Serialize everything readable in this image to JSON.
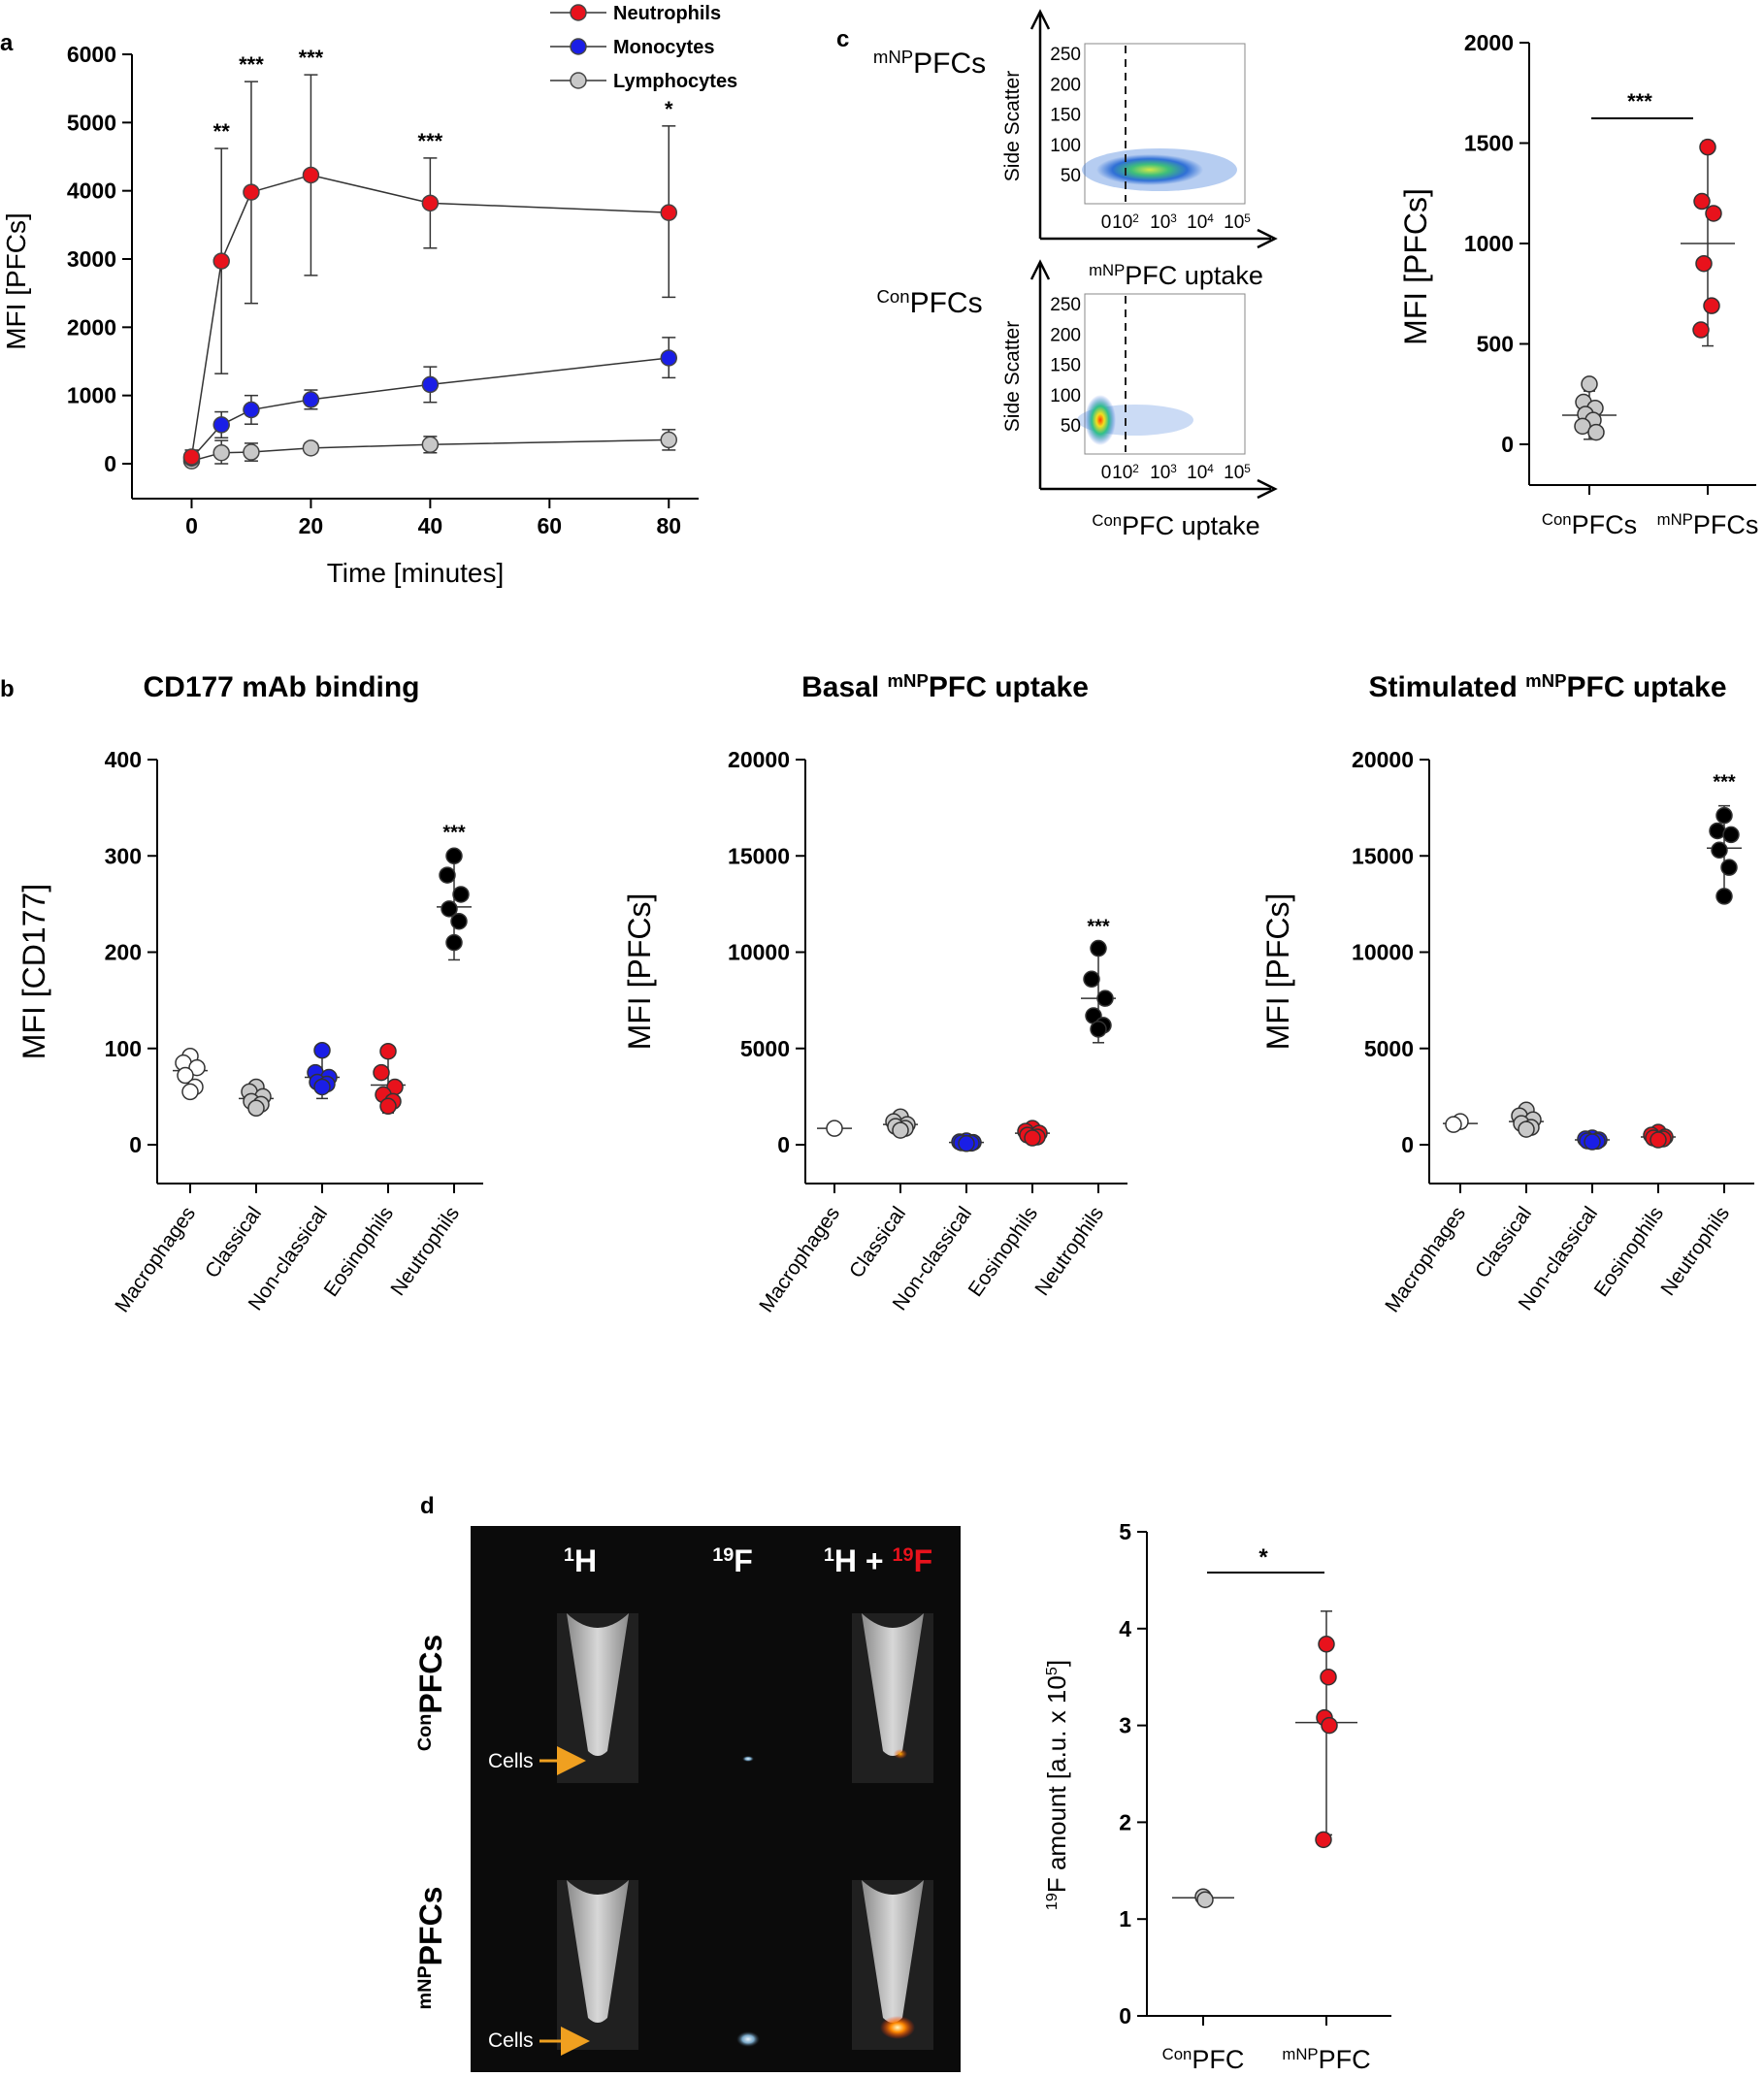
{
  "colors": {
    "neutrophils": "#e8121c",
    "monocytes": "#1a1ee6",
    "lymphocytes": "#c8c8c8",
    "black": "#000000",
    "white": "#ffffff",
    "mri_background": "#0b0b0b"
  },
  "panel_labels": {
    "a": "a",
    "b": "b",
    "c": "c",
    "d": "d"
  },
  "chart_data": [
    {
      "id": "a",
      "type": "line",
      "title": "",
      "xlabel": "Time [minutes]",
      "ylabel": "MFI [PFCs]",
      "xlim": [
        -10,
        85
      ],
      "ylim": [
        -500,
        6000
      ],
      "xticks": [
        0,
        20,
        40,
        60,
        80
      ],
      "yticks": [
        0,
        1000,
        2000,
        3000,
        4000,
        5000,
        6000
      ],
      "legend": {
        "placement": "top-right",
        "entries": [
          "Neutrophils",
          "Monocytes",
          "Lymphocytes"
        ]
      },
      "x": [
        0,
        5,
        10,
        20,
        40,
        80
      ],
      "series": [
        {
          "name": "Neutrophils",
          "color": "#e8121c",
          "values": [
            100,
            2970,
            3980,
            4230,
            3820,
            3680
          ],
          "err_high": [
            200,
            4620,
            5600,
            5700,
            4480,
            4950
          ],
          "err_low": [
            40,
            1320,
            2350,
            2760,
            3160,
            2440
          ]
        },
        {
          "name": "Monocytes",
          "color": "#1a1ee6",
          "values": [
            80,
            570,
            790,
            940,
            1160,
            1550
          ],
          "err_high": [
            150,
            760,
            1000,
            1080,
            1420,
            1850
          ],
          "err_low": [
            30,
            380,
            580,
            800,
            900,
            1260
          ]
        },
        {
          "name": "Lymphocytes",
          "color": "#c8c8c8",
          "values": [
            40,
            160,
            170,
            230,
            280,
            350
          ],
          "err_high": [
            90,
            340,
            300,
            300,
            400,
            500
          ],
          "err_low": [
            10,
            0,
            40,
            160,
            160,
            200
          ]
        }
      ],
      "annotations": [
        {
          "x": 5,
          "label": "**"
        },
        {
          "x": 10,
          "label": "***"
        },
        {
          "x": 20,
          "label": "***"
        },
        {
          "x": 40,
          "label": "***"
        },
        {
          "x": 80,
          "label": "*"
        }
      ]
    },
    {
      "id": "b1",
      "type": "scatter",
      "title": "CD177 mAb binding",
      "ylabel": "MFI [CD177]",
      "ylim": [
        -40,
        400
      ],
      "yticks": [
        0,
        100,
        200,
        300,
        400
      ],
      "categories": [
        "Macrophages",
        "Classical",
        "Non-classical",
        "Eosinophils",
        "Neutrophils"
      ],
      "groups": [
        {
          "color": "#ffffff",
          "mean": 77,
          "sd_low": 60,
          "sd_high": 92,
          "points": [
            92,
            85,
            80,
            72,
            60,
            55
          ]
        },
        {
          "color": "#c8c8c8",
          "mean": 48,
          "sd_low": 35,
          "sd_high": 60,
          "points": [
            60,
            55,
            50,
            45,
            42,
            38
          ]
        },
        {
          "color": "#1a1ee6",
          "mean": 70,
          "sd_low": 48,
          "sd_high": 98,
          "points": [
            98,
            75,
            70,
            65,
            63,
            60
          ]
        },
        {
          "color": "#e8121c",
          "mean": 62,
          "sd_low": 33,
          "sd_high": 97,
          "points": [
            97,
            75,
            60,
            52,
            45,
            40
          ]
        },
        {
          "color": "#000000",
          "mean": 247,
          "sd_low": 192,
          "sd_high": 300,
          "points": [
            300,
            280,
            260,
            245,
            232,
            210
          ]
        }
      ],
      "annotations": [
        {
          "category": "Neutrophils",
          "label": "***"
        }
      ]
    },
    {
      "id": "b2",
      "type": "scatter",
      "title": "Basal",
      "title_sup": "mNP",
      "title_rest": "PFC uptake",
      "ylabel": "MFI [PFCs]",
      "ylim": [
        -2000,
        20000
      ],
      "yticks": [
        0,
        5000,
        10000,
        15000,
        20000
      ],
      "categories": [
        "Macrophages",
        "Classical",
        "Non-classical",
        "Eosinophils",
        "Neutrophils"
      ],
      "groups": [
        {
          "color": "#ffffff",
          "mean": 850,
          "sd_low": 700,
          "sd_high": 950,
          "points": [
            850
          ]
        },
        {
          "color": "#c8c8c8",
          "mean": 1050,
          "sd_low": 700,
          "sd_high": 1450,
          "points": [
            1450,
            1200,
            1050,
            950,
            850,
            750
          ]
        },
        {
          "color": "#1a1ee6",
          "mean": 120,
          "sd_low": 60,
          "sd_high": 200,
          "points": [
            200,
            150,
            120,
            100,
            80,
            60
          ]
        },
        {
          "color": "#e8121c",
          "mean": 600,
          "sd_low": 300,
          "sd_high": 850,
          "points": [
            850,
            700,
            600,
            500,
            400,
            350
          ]
        },
        {
          "color": "#000000",
          "mean": 7600,
          "sd_low": 5300,
          "sd_high": 10100,
          "points": [
            10200,
            8600,
            7600,
            6700,
            6200,
            6000
          ]
        }
      ],
      "annotations": [
        {
          "category": "Neutrophils",
          "label": "***"
        }
      ]
    },
    {
      "id": "b3",
      "type": "scatter",
      "title": "Stimulated",
      "title_sup": "mNP",
      "title_rest": "PFC uptake",
      "ylabel": "MFI [PFCs]",
      "ylim": [
        -2000,
        20000
      ],
      "yticks": [
        0,
        5000,
        10000,
        15000,
        20000
      ],
      "categories": [
        "Macrophages",
        "Classical",
        "Non-classical",
        "Eosinophils",
        "Neutrophils"
      ],
      "groups": [
        {
          "color": "#ffffff",
          "mean": 1100,
          "sd_low": 900,
          "sd_high": 1300,
          "points": [
            1200,
            1050
          ]
        },
        {
          "color": "#c8c8c8",
          "mean": 1200,
          "sd_low": 700,
          "sd_high": 1800,
          "points": [
            1800,
            1500,
            1300,
            1100,
            900,
            800
          ]
        },
        {
          "color": "#1a1ee6",
          "mean": 250,
          "sd_low": 150,
          "sd_high": 350,
          "points": [
            350,
            300,
            250,
            200,
            180,
            150
          ]
        },
        {
          "color": "#e8121c",
          "mean": 400,
          "sd_low": 250,
          "sd_high": 650,
          "points": [
            650,
            500,
            400,
            350,
            300,
            250
          ]
        },
        {
          "color": "#000000",
          "mean": 15400,
          "sd_low": 13000,
          "sd_high": 17600,
          "points": [
            17100,
            16300,
            16100,
            15300,
            14400,
            12900
          ]
        }
      ],
      "annotations": [
        {
          "category": "Neutrophils",
          "label": "***"
        }
      ]
    },
    {
      "id": "c_flow",
      "type": "heatmap",
      "plots": [
        {
          "name_sup": "mNP",
          "name": "PFCs",
          "xlabel_sup": "mNP",
          "xlabel": "PFC uptake"
        },
        {
          "name_sup": "Con",
          "name": "PFCs",
          "xlabel_sup": "Con",
          "xlabel": "PFC uptake"
        }
      ],
      "ylabel": "Side Scatter",
      "yticks": [
        50,
        100,
        150,
        200,
        250
      ],
      "xticks": [
        {
          "base": "0",
          "exp": ""
        },
        {
          "base": "10",
          "exp": "2"
        },
        {
          "base": "10",
          "exp": "3"
        },
        {
          "base": "10",
          "exp": "4"
        },
        {
          "base": "10",
          "exp": "5"
        }
      ]
    },
    {
      "id": "c_scatter",
      "type": "scatter",
      "ylabel": "MFI [PFCs]",
      "ylim": [
        -150,
        2000
      ],
      "yticks": [
        0,
        500,
        1000,
        1500,
        2000
      ],
      "categories": [
        {
          "sup": "Con",
          "label": "PFCs"
        },
        {
          "sup": "mNP",
          "label": "PFCs"
        }
      ],
      "groups": [
        {
          "color": "#c8c8c8",
          "mean": 145,
          "sd_low": 25,
          "sd_high": 265,
          "points": [
            300,
            210,
            180,
            150,
            120,
            90,
            60
          ]
        },
        {
          "color": "#e8121c",
          "mean": 1000,
          "sd_low": 490,
          "sd_high": 1510,
          "points": [
            1480,
            1210,
            1150,
            900,
            690,
            570
          ]
        }
      ],
      "significance": "***"
    },
    {
      "id": "d_mri",
      "type": "table",
      "columns": [
        {
          "sup": "1",
          "label": "H"
        },
        {
          "sup": "19",
          "label": "F"
        },
        {
          "sup": "1",
          "label": "H +",
          "sup2": "19",
          "label2": "F"
        }
      ],
      "rows": [
        {
          "sup": "Con",
          "label": "PFCs"
        },
        {
          "sup": "mNP",
          "label": "PFCs"
        }
      ],
      "cells_label": "Cells"
    },
    {
      "id": "d_scatter",
      "type": "scatter",
      "ylabel_sup": "19",
      "ylabel": "F amount [a.u. x 10",
      "ylabel_sup2": "5",
      "ylabel_end": "]",
      "ylim": [
        0,
        5
      ],
      "yticks": [
        0,
        1,
        2,
        3,
        4,
        5
      ],
      "categories": [
        {
          "sup": "Con",
          "label": "PFC"
        },
        {
          "sup": "mNP",
          "label": "PFC"
        }
      ],
      "groups": [
        {
          "color": "#c8c8c8",
          "mean": 1.22,
          "sd_low": 1.2,
          "sd_high": 1.24,
          "points": [
            1.23,
            1.2
          ]
        },
        {
          "color": "#e8121c",
          "mean": 3.03,
          "sd_low": 1.87,
          "sd_high": 4.18,
          "points": [
            3.84,
            3.5,
            3.08,
            3.0,
            1.82
          ]
        }
      ],
      "significance": "*"
    }
  ]
}
